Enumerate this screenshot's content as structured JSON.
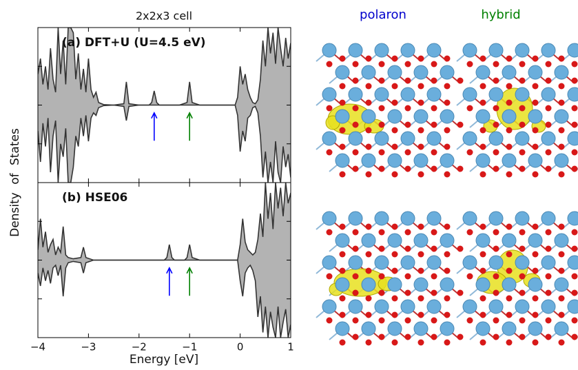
{
  "figure": {
    "ylabel": "Density of States",
    "columns": [
      "polaron",
      "hybrid"
    ]
  },
  "chart_data": [
    {
      "type": "area",
      "title": "2x2x3 cell",
      "label": "(a) DFT+U (U=4.5 eV)",
      "x": [
        -4,
        -3.95,
        -3.9,
        -3.85,
        -3.8,
        -3.75,
        -3.7,
        -3.65,
        -3.6,
        -3.55,
        -3.5,
        -3.45,
        -3.4,
        -3.35,
        -3.3,
        -3.25,
        -3.2,
        -3.15,
        -3.1,
        -3.05,
        -3.0,
        -2.95,
        -2.9,
        -2.85,
        -2.8,
        -2.7,
        -2.5,
        -2.3,
        -2.25,
        -2.2,
        -2.0,
        -1.8,
        -1.75,
        -1.7,
        -1.65,
        -1.6,
        -1.2,
        -1.05,
        -1.0,
        -0.95,
        -0.8,
        -0.1,
        -0.05,
        0.0,
        0.05,
        0.1,
        0.15,
        0.2,
        0.25,
        0.3,
        0.35,
        0.4,
        0.45,
        0.5,
        0.55,
        0.6,
        0.65,
        0.7,
        0.75,
        0.8,
        0.85,
        0.9,
        0.95,
        1.0
      ],
      "series": [
        {
          "color": "#333333",
          "fill": "#b3b3b3",
          "values": [
            1.2,
            1.8,
            0.8,
            1.5,
            0.6,
            2.2,
            1.0,
            0.5,
            3,
            1.2,
            2.5,
            0.8,
            3,
            3,
            2.8,
            1.0,
            2.0,
            0.6,
            1.4,
            0.5,
            1.8,
            0.6,
            0.3,
            0.5,
            0.1,
            0.02,
            0,
            0.05,
            0.9,
            0.05,
            0,
            0,
            0.1,
            0.55,
            0.1,
            0,
            0,
            0.1,
            0.9,
            0.1,
            0,
            0,
            0.3,
            1.5,
            0.8,
            1.2,
            0.6,
            0.3,
            0.1,
            0.05,
            0.2,
            1.0,
            2.5,
            1.5,
            3,
            2,
            2.8,
            1.6,
            3,
            2.2,
            1.5,
            2.6,
            1.8,
            2.4
          ]
        },
        {
          "color": "#333333",
          "fill": "#b3b3b3",
          "values": [
            -1.0,
            -2.2,
            -0.7,
            -1.6,
            -0.5,
            -2.6,
            -1.2,
            -0.6,
            -3,
            -1.5,
            -2.0,
            -0.9,
            -3,
            -3,
            -2.4,
            -1.2,
            -1.6,
            -0.5,
            -1.2,
            -0.4,
            -1.4,
            -0.5,
            -0.3,
            -0.4,
            -0.1,
            -0.02,
            0,
            -0.05,
            -0.6,
            -0.05,
            0,
            0,
            0,
            0,
            0,
            0,
            0,
            0,
            0,
            0,
            0,
            0,
            -0.4,
            -1.8,
            -1.0,
            -1.4,
            -0.5,
            -0.4,
            -0.1,
            -0.05,
            -0.3,
            -1.2,
            -2.8,
            -1.8,
            -3,
            -2.2,
            -3,
            -1.4,
            -2.6,
            -3,
            -1.6,
            -2.4,
            -1.9,
            -2.8
          ]
        }
      ],
      "arrows": [
        {
          "x": -1.7,
          "color": "#0000ff"
        },
        {
          "x": -1.0,
          "color": "#008000"
        }
      ],
      "xlim": [
        -4,
        1
      ],
      "ylim": [
        -3,
        3
      ],
      "xticks": [
        -4,
        -3,
        -2,
        -1,
        0,
        1
      ]
    },
    {
      "type": "area",
      "label": "(b) HSE06",
      "xlabel": "Energy [eV]",
      "x": [
        -4,
        -3.95,
        -3.9,
        -3.85,
        -3.8,
        -3.75,
        -3.7,
        -3.65,
        -3.6,
        -3.55,
        -3.5,
        -3.45,
        -3.4,
        -3.3,
        -3.15,
        -3.1,
        -3.05,
        -2.9,
        -2.5,
        -1.5,
        -1.45,
        -1.4,
        -1.35,
        -1.3,
        -1.1,
        -1.05,
        -1.0,
        -0.95,
        -0.8,
        -0.05,
        0.0,
        0.05,
        0.1,
        0.15,
        0.2,
        0.25,
        0.3,
        0.35,
        0.4,
        0.45,
        0.5,
        0.55,
        0.6,
        0.65,
        0.7,
        0.75,
        0.8,
        0.85,
        0.9,
        0.95,
        1.0
      ],
      "series": [
        {
          "color": "#333333",
          "fill": "#b3b3b3",
          "values": [
            0.4,
            1.6,
            0.5,
            1.1,
            0.3,
            0.6,
            0.8,
            0.2,
            0.5,
            0.3,
            1.3,
            0.2,
            0.1,
            0.05,
            0.1,
            0.5,
            0.1,
            0,
            0,
            0,
            0.1,
            0.6,
            0.1,
            0,
            0,
            0.1,
            0.6,
            0.1,
            0,
            0,
            0.6,
            1.6,
            0.7,
            0.4,
            0.3,
            0.2,
            0.3,
            0.8,
            1.8,
            0.9,
            3,
            1.6,
            2.6,
            1.2,
            3,
            2.0,
            2.8,
            1.7,
            3,
            2.2,
            2.6
          ]
        },
        {
          "color": "#333333",
          "fill": "#b3b3b3",
          "values": [
            -0.5,
            -1.0,
            -0.3,
            -0.8,
            -0.4,
            -0.9,
            -0.3,
            -0.2,
            -0.6,
            -0.2,
            -1.4,
            -0.3,
            -0.1,
            -0.05,
            -0.1,
            -0.5,
            -0.1,
            0,
            0,
            0,
            0,
            0,
            0,
            0,
            0,
            0,
            0,
            0,
            0,
            0,
            -0.8,
            -1.4,
            -0.5,
            -0.3,
            -0.2,
            -0.4,
            -0.8,
            -2.2,
            -1.4,
            -2.8,
            -1.8,
            -3,
            -2.0,
            -2.6,
            -3,
            -1.8,
            -3,
            -2.4,
            -1.9,
            -3,
            -2.5
          ]
        }
      ],
      "arrows": [
        {
          "x": -1.4,
          "color": "#0000ff"
        },
        {
          "x": -1.0,
          "color": "#008000"
        }
      ],
      "xlim": [
        -4,
        1
      ],
      "ylim": [
        -3,
        3
      ],
      "xticks": [
        {
          "value": -4,
          "label": "−4"
        },
        {
          "value": -3,
          "label": "−3"
        },
        {
          "value": -2,
          "label": "−2"
        },
        {
          "value": -1,
          "label": "−1"
        },
        0,
        1
      ]
    }
  ]
}
